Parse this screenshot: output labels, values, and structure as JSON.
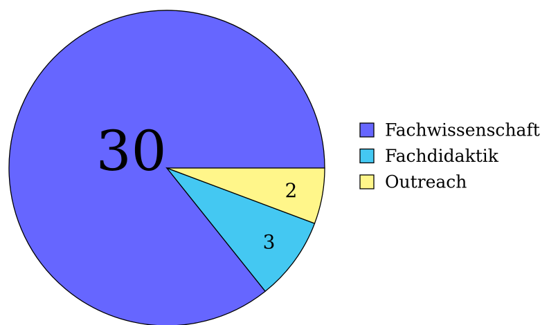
{
  "chart_data": {
    "type": "pie",
    "categories": [
      "Fachwissenschaft",
      "Fachdidaktik",
      "Outreach"
    ],
    "values": [
      30,
      3,
      2
    ],
    "colors": [
      "#6666ff",
      "#44c8f2",
      "#fff68a"
    ],
    "legend": "right"
  }
}
